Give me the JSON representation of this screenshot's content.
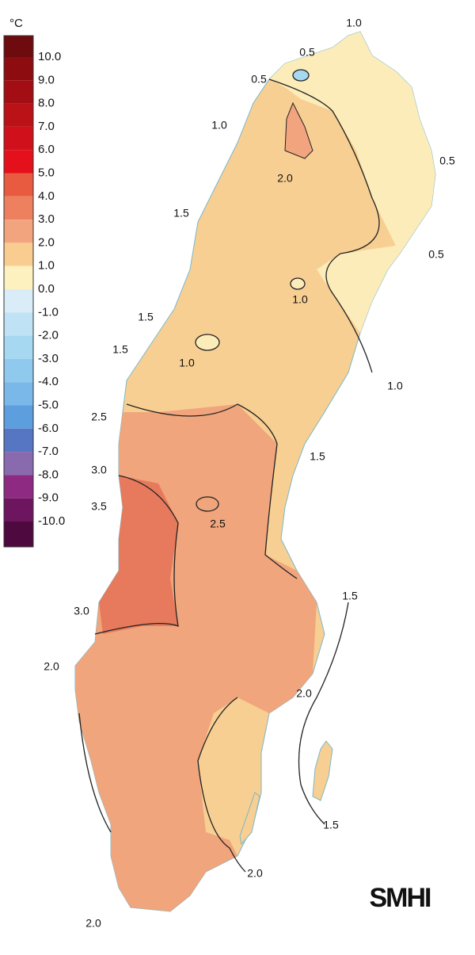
{
  "legend": {
    "unit": "°C",
    "labels": [
      "10.0",
      "9.0",
      "8.0",
      "7.0",
      "6.0",
      "5.0",
      "4.0",
      "3.0",
      "2.0",
      "1.0",
      "0.0",
      "-1.0",
      "-2.0",
      "-3.0",
      "-4.0",
      "-5.0",
      "-6.0",
      "-7.0",
      "-8.0",
      "-9.0",
      "-10.0"
    ],
    "colors": [
      "#6e0b0e",
      "#8c0c10",
      "#a30e14",
      "#bb1218",
      "#d0101a",
      "#e4101b",
      "#e95b40",
      "#ee8060",
      "#f2a47e",
      "#f9cd8f",
      "#fef1c0",
      "#d9ecf7",
      "#bfe3f5",
      "#a6d8f2",
      "#8fc9ee",
      "#79b8e8",
      "#5d9fde",
      "#5676c3",
      "#8a6aae",
      "#8f2a82",
      "#6e1560",
      "#4e0a3e"
    ]
  },
  "contour_labels": [
    "1.0",
    "0.5",
    "0.5",
    "1.0",
    "2.0",
    "0.5",
    "1.5",
    "0.5",
    "1.0",
    "1.5",
    "1.5",
    "1.0",
    "1.0",
    "2.5",
    "1.5",
    "3.0",
    "3.5",
    "2.5",
    "1.5",
    "3.0",
    "2.0",
    "2.0",
    "1.5",
    "2.0",
    "2.0"
  ],
  "logo": "SMHI"
}
